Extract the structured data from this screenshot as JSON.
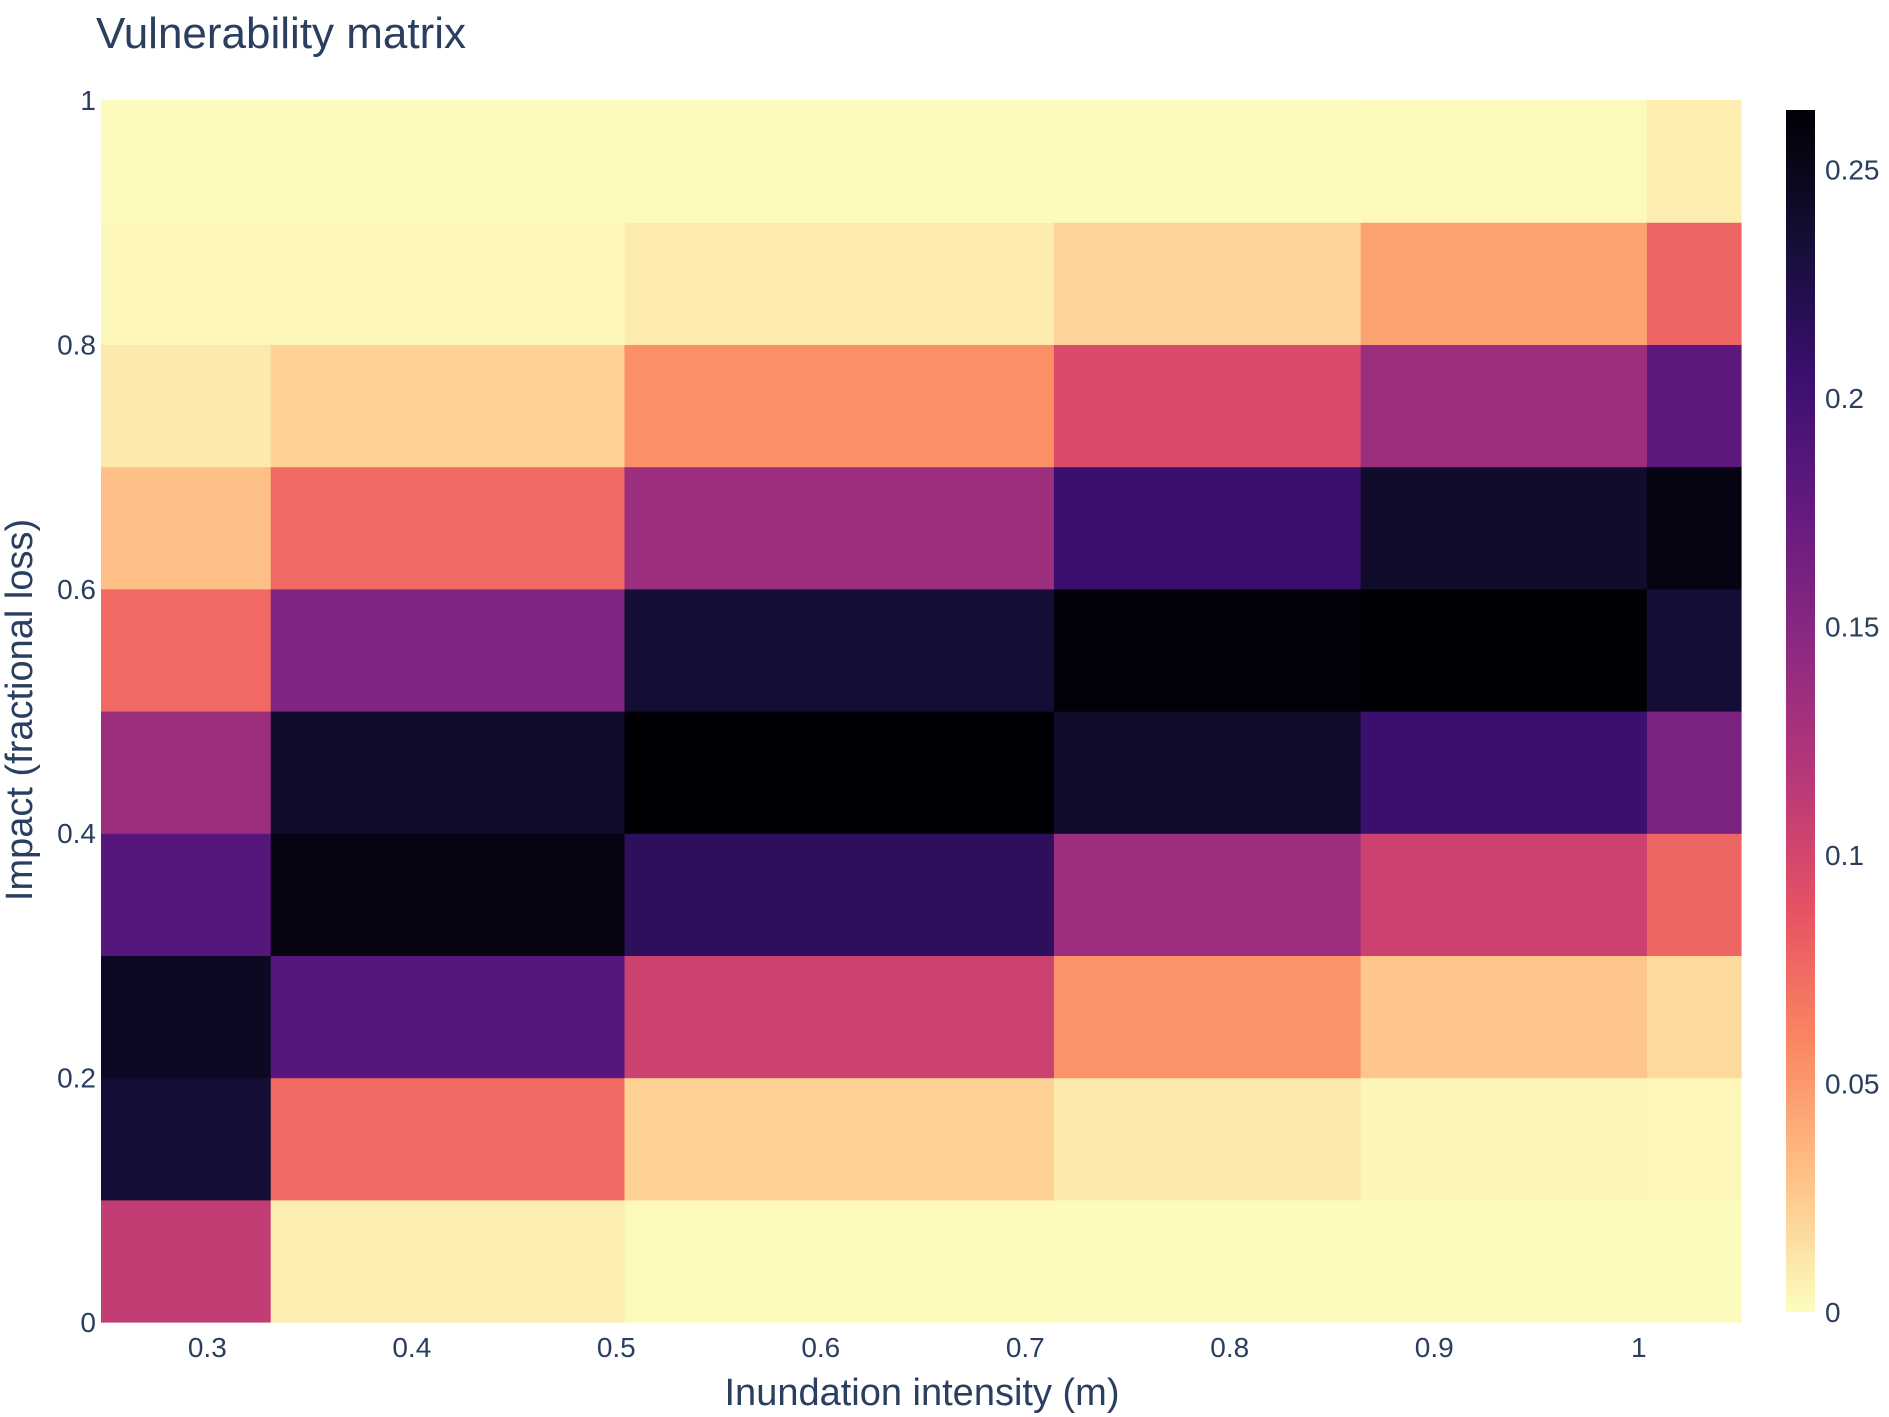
{
  "chart_data": {
    "type": "heatmap",
    "title": "Vulnerability matrix",
    "xlabel": "Inundation intensity (m)",
    "ylabel": "Impact (fractional loss)",
    "x_ticks": [
      "0.3",
      "0.4",
      "0.5",
      "0.6",
      "0.7",
      "0.8",
      "0.9",
      "1"
    ],
    "y_ticks": [
      "0",
      "0.2",
      "0.4",
      "0.6",
      "0.8",
      "1"
    ],
    "colorbar_ticks": [
      "0",
      "0.05",
      "0.1",
      "0.15",
      "0.2",
      "0.25"
    ],
    "colorbar_range": [
      0,
      0.263
    ],
    "xlim": [
      0.248,
      1.05
    ],
    "ylim": [
      0,
      1
    ],
    "x_edges": [
      0.248,
      0.331,
      0.504,
      0.714,
      0.864,
      1.004,
      1.05
    ],
    "y_edges": [
      0,
      0.1,
      0.2,
      0.3,
      0.4,
      0.5,
      0.6,
      0.7,
      0.8,
      0.9,
      1.0
    ],
    "z": [
      [
        0.11,
        0.008,
        0.002,
        0.001,
        0.001,
        0.001
      ],
      [
        0.235,
        0.075,
        0.022,
        0.01,
        0.004,
        0.003
      ],
      [
        0.245,
        0.185,
        0.105,
        0.053,
        0.027,
        0.018
      ],
      [
        0.185,
        0.255,
        0.215,
        0.135,
        0.105,
        0.077
      ],
      [
        0.135,
        0.24,
        0.263,
        0.24,
        0.205,
        0.158
      ],
      [
        0.075,
        0.155,
        0.235,
        0.26,
        0.262,
        0.235
      ],
      [
        0.03,
        0.075,
        0.135,
        0.205,
        0.24,
        0.255
      ],
      [
        0.01,
        0.022,
        0.055,
        0.095,
        0.135,
        0.18
      ],
      [
        0.003,
        0.003,
        0.009,
        0.02,
        0.045,
        0.078
      ],
      [
        0.001,
        0.001,
        0.001,
        0.001,
        0.002,
        0.008
      ]
    ],
    "colorscale": [
      "#fcfdbf",
      "#fec287",
      "#fb8861",
      "#e75263",
      "#b73779",
      "#8c2981",
      "#641a80",
      "#3b0f70",
      "#150e37",
      "#000004"
    ]
  }
}
